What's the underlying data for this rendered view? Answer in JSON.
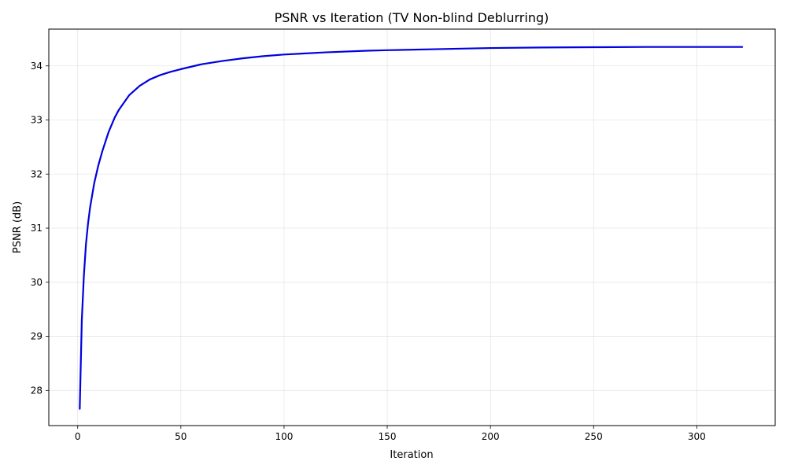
{
  "chart_data": {
    "type": "line",
    "title": "PSNR vs Iteration (TV Non-blind Deblurring)",
    "xlabel": "Iteration",
    "ylabel": "PSNR (dB)",
    "xlim": [
      -14,
      338
    ],
    "ylim": [
      27.35,
      34.68
    ],
    "xticks": [
      0,
      50,
      100,
      150,
      200,
      250,
      300
    ],
    "yticks": [
      28,
      29,
      30,
      31,
      32,
      33,
      34
    ],
    "grid": true,
    "series": [
      {
        "color": "#0000e0",
        "x": [
          1,
          2,
          3,
          4,
          5,
          6,
          8,
          10,
          12,
          15,
          18,
          20,
          25,
          30,
          35,
          40,
          45,
          50,
          60,
          70,
          80,
          90,
          100,
          120,
          140,
          150,
          175,
          200,
          225,
          250,
          275,
          300,
          322
        ],
        "y": [
          27.66,
          29.3,
          30.12,
          30.7,
          31.08,
          31.38,
          31.83,
          32.16,
          32.43,
          32.78,
          33.05,
          33.19,
          33.46,
          33.63,
          33.75,
          33.83,
          33.89,
          33.94,
          34.03,
          34.09,
          34.14,
          34.18,
          34.21,
          34.25,
          34.28,
          34.29,
          34.31,
          34.33,
          34.34,
          34.345,
          34.35,
          34.35,
          34.35
        ]
      }
    ]
  }
}
